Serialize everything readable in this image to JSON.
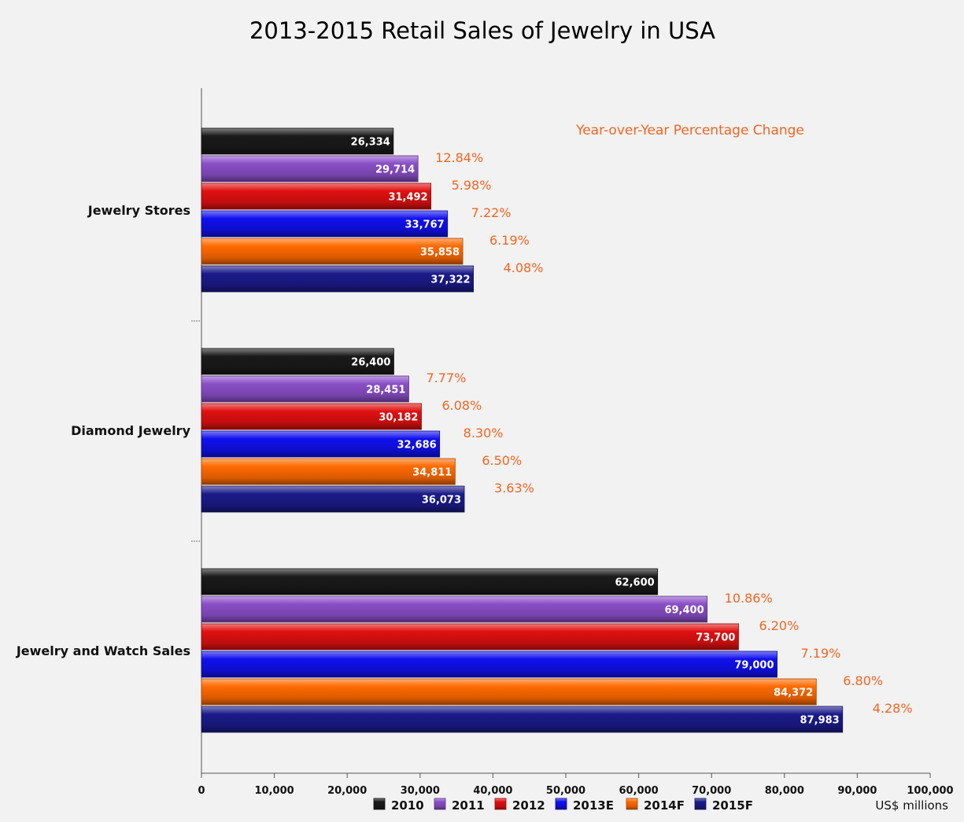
{
  "chart_data": {
    "type": "bar",
    "orientation": "horizontal",
    "title": "2013-2015 Retail Sales of Jewelry in USA",
    "categories": [
      "Jewelry Stores",
      "Diamond Jewelry",
      "Jewelry and Watch Sales"
    ],
    "series": [
      {
        "name": "2010",
        "color": "#1a1a1a",
        "values": [
          26334,
          26400,
          62600
        ],
        "labels": [
          "26,334",
          "26,400",
          "62,600"
        ]
      },
      {
        "name": "2011",
        "color": "#8a4fc7",
        "values": [
          29714,
          28451,
          69400
        ],
        "labels": [
          "29,714",
          "28,451",
          "69,400"
        ]
      },
      {
        "name": "2012",
        "color": "#e01010",
        "values": [
          31492,
          30182,
          73700
        ],
        "labels": [
          "31,492",
          "30,182",
          "73,700"
        ]
      },
      {
        "name": "2013E",
        "color": "#1010ee",
        "values": [
          33767,
          32686,
          79000
        ],
        "labels": [
          "33,767",
          "32,686",
          "79,000"
        ]
      },
      {
        "name": "2014F",
        "color": "#ff6a00",
        "values": [
          35858,
          34811,
          84372
        ],
        "labels": [
          "35,858",
          "34,811",
          "84,372"
        ]
      },
      {
        "name": "2015F",
        "color": "#1b1b8a",
        "values": [
          37322,
          36073,
          87983
        ],
        "labels": [
          "37,322",
          "36,073",
          "87,983"
        ]
      }
    ],
    "yoy_change": [
      [
        "12.84%",
        "5.98%",
        "7.22%",
        "6.19%",
        "4.08%"
      ],
      [
        "7.77%",
        "6.08%",
        "8.30%",
        "6.50%",
        "3.63%"
      ],
      [
        "10.86%",
        "6.20%",
        "7.19%",
        "6.80%",
        "4.28%"
      ]
    ],
    "annotation": "Year-over-Year Percentage Change",
    "xlim": [
      0,
      100000
    ],
    "xticks": [
      0,
      10000,
      20000,
      30000,
      40000,
      50000,
      60000,
      70000,
      80000,
      90000,
      100000
    ],
    "xtick_labels": [
      "0",
      "10,000",
      "20,000",
      "30,000",
      "40,000",
      "50,000",
      "60,000",
      "70,000",
      "80,000",
      "90,000",
      "100,000"
    ],
    "unit_label": "US$ millions",
    "legend_position": "bottom"
  }
}
